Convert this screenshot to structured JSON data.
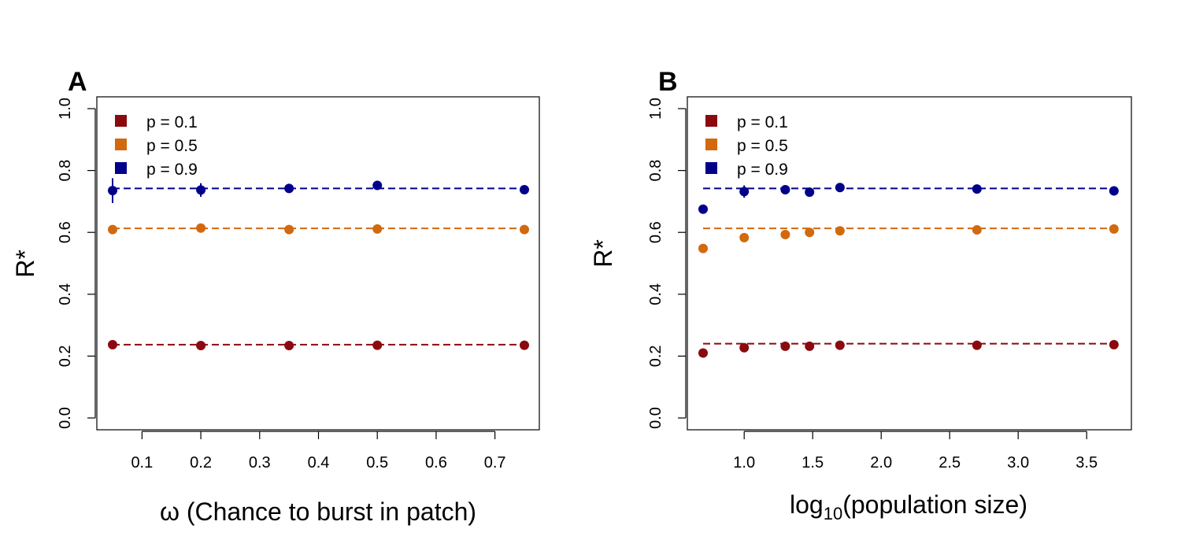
{
  "colors": {
    "p01": "#8b0a0f",
    "p05": "#d2690e",
    "p09": "#00008b",
    "frame": "#000000"
  },
  "chart_data": [
    {
      "type": "scatter",
      "panel": "A",
      "xlabel": "ω (Chance to burst in patch)",
      "ylabel": "R*",
      "xlim": [
        0.05,
        0.75
      ],
      "ylim": [
        0.0,
        1.0
      ],
      "xticks": [
        "0.1",
        "0.2",
        "0.3",
        "0.4",
        "0.5",
        "0.6",
        "0.7"
      ],
      "yticks": [
        "0.0",
        "0.2",
        "0.4",
        "0.6",
        "0.8",
        "1.0"
      ],
      "legend_position": "top-left",
      "series": [
        {
          "name": "p = 0.1",
          "color_key": "p01",
          "reference": 0.237,
          "points": [
            {
              "x": 0.05,
              "y": 0.237,
              "err": 0.005
            },
            {
              "x": 0.2,
              "y": 0.234,
              "err": 0.004
            },
            {
              "x": 0.35,
              "y": 0.234,
              "err": 0.004
            },
            {
              "x": 0.5,
              "y": 0.235,
              "err": 0.004
            },
            {
              "x": 0.75,
              "y": 0.235,
              "err": 0.004
            }
          ]
        },
        {
          "name": "p = 0.5",
          "color_key": "p05",
          "reference": 0.613,
          "points": [
            {
              "x": 0.05,
              "y": 0.609,
              "err": 0.006
            },
            {
              "x": 0.2,
              "y": 0.614,
              "err": 0.006
            },
            {
              "x": 0.35,
              "y": 0.609,
              "err": 0.005
            },
            {
              "x": 0.5,
              "y": 0.611,
              "err": 0.005
            },
            {
              "x": 0.75,
              "y": 0.609,
              "err": 0.005
            }
          ]
        },
        {
          "name": "p = 0.9",
          "color_key": "p09",
          "reference": 0.742,
          "points": [
            {
              "x": 0.05,
              "y": 0.735,
              "err": 0.04
            },
            {
              "x": 0.2,
              "y": 0.737,
              "err": 0.022
            },
            {
              "x": 0.35,
              "y": 0.742,
              "err": 0.006
            },
            {
              "x": 0.5,
              "y": 0.752,
              "err": 0.006
            },
            {
              "x": 0.75,
              "y": 0.738,
              "err": 0.005
            }
          ]
        }
      ]
    },
    {
      "type": "scatter",
      "panel": "B",
      "xlabel": "log10(population size)",
      "ylabel": "R*",
      "xlim": [
        0.7,
        3.7
      ],
      "ylim": [
        0.0,
        1.0
      ],
      "xticks": [
        "1.0",
        "1.5",
        "2.0",
        "2.5",
        "3.0",
        "3.5"
      ],
      "yticks": [
        "0.0",
        "0.2",
        "0.4",
        "0.6",
        "0.8",
        "1.0"
      ],
      "legend_position": "top-left",
      "series": [
        {
          "name": "p = 0.1",
          "color_key": "p01",
          "reference": 0.24,
          "points": [
            {
              "x": 0.7,
              "y": 0.21,
              "err": 0.006
            },
            {
              "x": 1.0,
              "y": 0.227,
              "err": 0.006
            },
            {
              "x": 1.3,
              "y": 0.232,
              "err": 0.005
            },
            {
              "x": 1.477,
              "y": 0.232,
              "err": 0.005
            },
            {
              "x": 1.699,
              "y": 0.235,
              "err": 0.005
            },
            {
              "x": 2.699,
              "y": 0.235,
              "err": 0.004
            },
            {
              "x": 3.699,
              "y": 0.237,
              "err": 0.004
            }
          ]
        },
        {
          "name": "p = 0.5",
          "color_key": "p05",
          "reference": 0.613,
          "points": [
            {
              "x": 0.7,
              "y": 0.548,
              "err": 0.006
            },
            {
              "x": 1.0,
              "y": 0.583,
              "err": 0.006
            },
            {
              "x": 1.3,
              "y": 0.593,
              "err": 0.006
            },
            {
              "x": 1.477,
              "y": 0.6,
              "err": 0.006
            },
            {
              "x": 1.699,
              "y": 0.605,
              "err": 0.006
            },
            {
              "x": 2.699,
              "y": 0.608,
              "err": 0.005
            },
            {
              "x": 3.699,
              "y": 0.611,
              "err": 0.005
            }
          ]
        },
        {
          "name": "p = 0.9",
          "color_key": "p09",
          "reference": 0.742,
          "points": [
            {
              "x": 0.7,
              "y": 0.675,
              "err": 0.006
            },
            {
              "x": 1.0,
              "y": 0.732,
              "err": 0.02
            },
            {
              "x": 1.3,
              "y": 0.738,
              "err": 0.008
            },
            {
              "x": 1.477,
              "y": 0.73,
              "err": 0.007
            },
            {
              "x": 1.699,
              "y": 0.745,
              "err": 0.009
            },
            {
              "x": 2.699,
              "y": 0.74,
              "err": 0.006
            },
            {
              "x": 3.699,
              "y": 0.734,
              "err": 0.005
            }
          ]
        }
      ]
    }
  ]
}
